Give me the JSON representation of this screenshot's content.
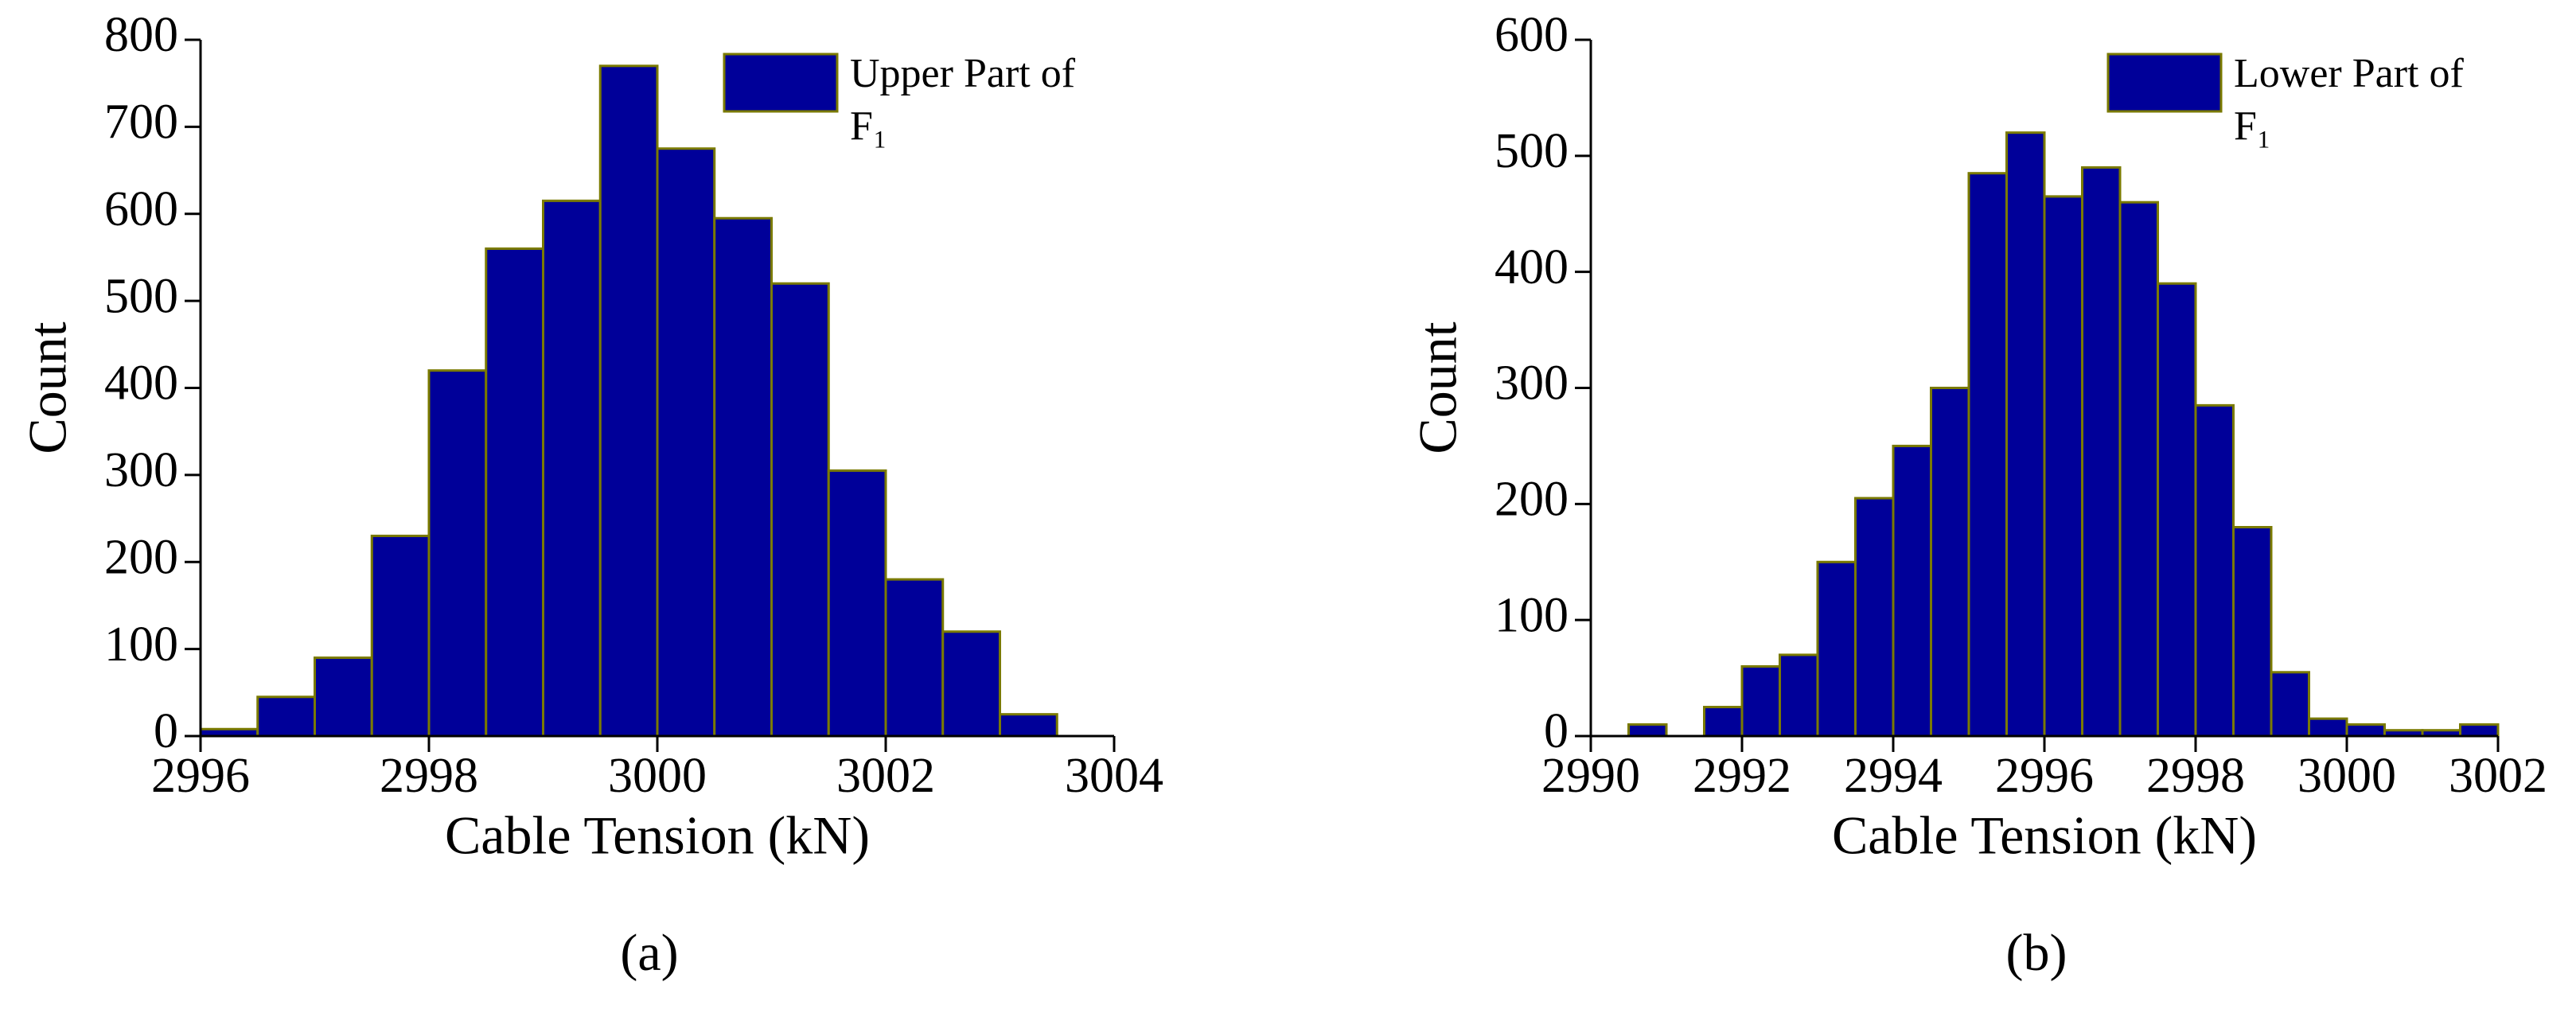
{
  "chart_data": [
    {
      "type": "histogram",
      "caption": "(a)",
      "xlabel": "Cable Tension (kN)",
      "ylabel": "Count",
      "bins": [
        2996,
        2996.5,
        2997,
        2997.5,
        2998,
        2998.5,
        2999,
        2999.5,
        3000,
        3000.5,
        3001,
        3001.5,
        3002,
        3002.5,
        3003,
        3003.5
      ],
      "series": [
        {
          "name": "Upper Part of F₁",
          "color": "#000099",
          "values": [
            8,
            45,
            90,
            230,
            420,
            560,
            615,
            770,
            675,
            595,
            520,
            305,
            180,
            120,
            25
          ]
        }
      ],
      "xlim": [
        2996,
        3004
      ],
      "xticks": [
        2996,
        2998,
        3000,
        3002,
        3004
      ],
      "ylim": [
        0,
        800
      ],
      "yticks": [
        0,
        100,
        200,
        300,
        400,
        500,
        600,
        700,
        800
      ],
      "legend": "upper right"
    },
    {
      "type": "histogram",
      "caption": "(b)",
      "xlabel": "Cable Tension (kN)",
      "ylabel": "Count",
      "bins": [
        2990.5,
        2991,
        2991.5,
        2992,
        2992.5,
        2993,
        2993.5,
        2994,
        2994.5,
        2995,
        2995.5,
        2996,
        2996.5,
        2997,
        2997.5,
        2998,
        2998.5,
        2999,
        2999.5,
        3000,
        3000.5,
        3001,
        3001.5,
        3002
      ],
      "series": [
        {
          "name": "Lower Part of F₁",
          "color": "#000099",
          "values": [
            10,
            0,
            25,
            60,
            70,
            150,
            205,
            250,
            300,
            485,
            520,
            465,
            490,
            460,
            390,
            285,
            180,
            55,
            15,
            10,
            5,
            5,
            10
          ]
        }
      ],
      "xlim": [
        2990,
        3002
      ],
      "xticks": [
        2990,
        2992,
        2994,
        2996,
        2998,
        3000,
        3002
      ],
      "ylim": [
        0,
        600
      ],
      "yticks": [
        0,
        100,
        200,
        300,
        400,
        500,
        600
      ],
      "legend": "upper right"
    }
  ]
}
